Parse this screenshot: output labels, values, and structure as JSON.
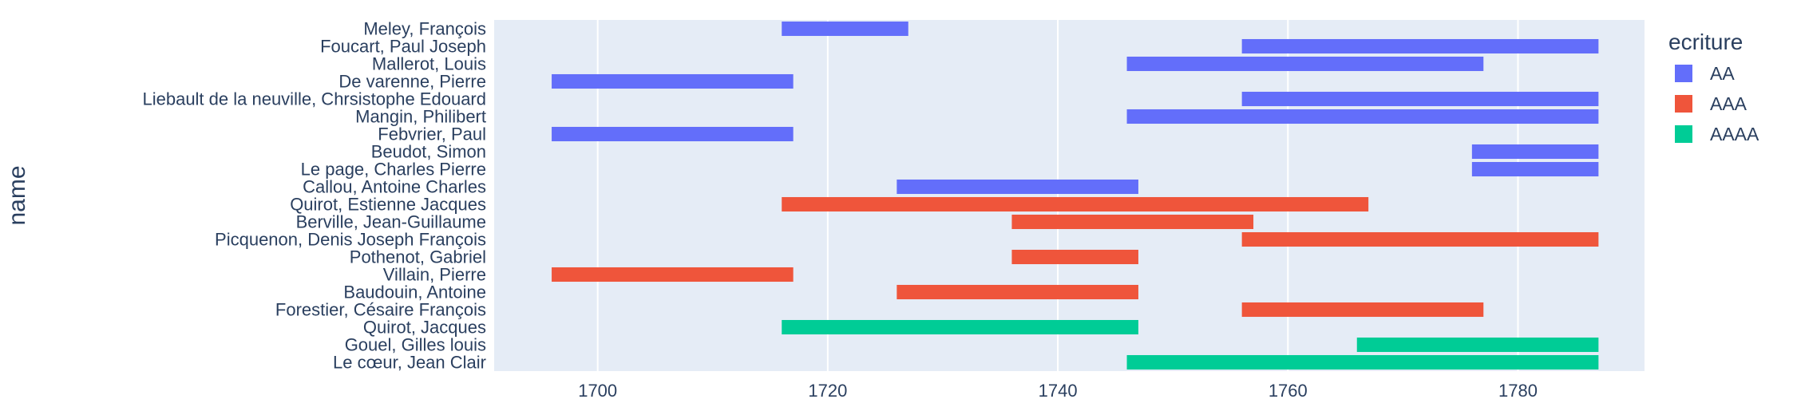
{
  "chart_data": {
    "type": "bar",
    "orientation": "horizontal-range",
    "title": "",
    "xlabel": "",
    "ylabel": "name",
    "xlim": [
      1691,
      1791
    ],
    "x_ticks": [
      1700,
      1720,
      1740,
      1760,
      1780
    ],
    "grid": true,
    "legend": {
      "title": "ecriture",
      "placement": "right",
      "entries": [
        {
          "name": "AA",
          "color": "#636efa"
        },
        {
          "name": "AAA",
          "color": "#ef553b"
        },
        {
          "name": "AAAA",
          "color": "#00cc96"
        }
      ]
    },
    "categories": [
      "Meley, François",
      "Foucart, Paul Joseph",
      "Mallerot, Louis",
      "De varenne, Pierre",
      "Liebault de la neuville, Chrsistophe Edouard",
      "Mangin, Philibert",
      "Febvrier, Paul",
      "Beudot, Simon",
      "Le page, Charles Pierre",
      "Callou, Antoine Charles",
      "Quirot, Estienne Jacques",
      "Berville, Jean-Guillaume",
      "Picquenon, Denis Joseph François",
      "Pothenot, Gabriel",
      "Villain, Pierre",
      "Baudouin, Antoine",
      "Forestier, Césaire François",
      "Quirot, Jacques",
      "Gouel, Gilles louis",
      "Le cœur, Jean Clair"
    ],
    "series": [
      {
        "name": "AA",
        "color": "#636efa",
        "bars": [
          {
            "name": "Meley, François",
            "start": 1716,
            "end": 1727
          },
          {
            "name": "Foucart, Paul Joseph",
            "start": 1756,
            "end": 1787
          },
          {
            "name": "Mallerot, Louis",
            "start": 1746,
            "end": 1777
          },
          {
            "name": "De varenne, Pierre",
            "start": 1696,
            "end": 1717
          },
          {
            "name": "Liebault de la neuville, Chrsistophe Edouard",
            "start": 1756,
            "end": 1787
          },
          {
            "name": "Mangin, Philibert",
            "start": 1746,
            "end": 1787
          },
          {
            "name": "Febvrier, Paul",
            "start": 1696,
            "end": 1717
          },
          {
            "name": "Beudot, Simon",
            "start": 1776,
            "end": 1787
          },
          {
            "name": "Le page, Charles Pierre",
            "start": 1776,
            "end": 1787
          },
          {
            "name": "Callou, Antoine Charles",
            "start": 1726,
            "end": 1747
          }
        ]
      },
      {
        "name": "AAA",
        "color": "#ef553b",
        "bars": [
          {
            "name": "Quirot, Estienne Jacques",
            "start": 1716,
            "end": 1767
          },
          {
            "name": "Berville, Jean-Guillaume",
            "start": 1736,
            "end": 1757
          },
          {
            "name": "Picquenon, Denis Joseph François",
            "start": 1756,
            "end": 1787
          },
          {
            "name": "Pothenot, Gabriel",
            "start": 1736,
            "end": 1747
          },
          {
            "name": "Villain, Pierre",
            "start": 1696,
            "end": 1717
          },
          {
            "name": "Baudouin, Antoine",
            "start": 1726,
            "end": 1747
          },
          {
            "name": "Forestier, Césaire François",
            "start": 1756,
            "end": 1777
          }
        ]
      },
      {
        "name": "AAAA",
        "color": "#00cc96",
        "bars": [
          {
            "name": "Quirot, Jacques",
            "start": 1716,
            "end": 1747
          },
          {
            "name": "Gouel, Gilles louis",
            "start": 1766,
            "end": 1787
          },
          {
            "name": "Le cœur, Jean Clair",
            "start": 1746,
            "end": 1787
          }
        ]
      }
    ]
  }
}
